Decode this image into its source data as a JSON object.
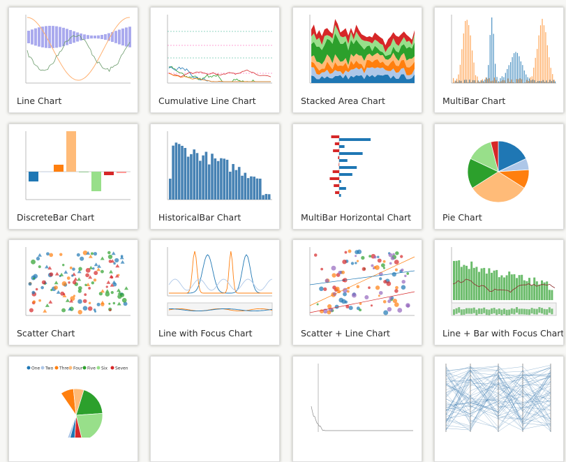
{
  "cards": [
    {
      "title": "Line Chart"
    },
    {
      "title": "Cumulative Line Chart"
    },
    {
      "title": "Stacked Area Chart"
    },
    {
      "title": "MultiBar Chart"
    },
    {
      "title": "DiscreteBar Chart"
    },
    {
      "title": "HistoricalBar Chart"
    },
    {
      "title": "MultiBar Horizontal Chart"
    },
    {
      "title": "Pie Chart"
    },
    {
      "title": "Scatter Chart"
    },
    {
      "title": "Line with Focus Chart"
    },
    {
      "title": "Scatter + Line Chart"
    },
    {
      "title": "Line + Bar with Focus Chart"
    },
    {
      "legend": [
        "One",
        "Two",
        "Three",
        "Four",
        "Five",
        "Six",
        "Seven"
      ]
    },
    {},
    {},
    {}
  ]
}
